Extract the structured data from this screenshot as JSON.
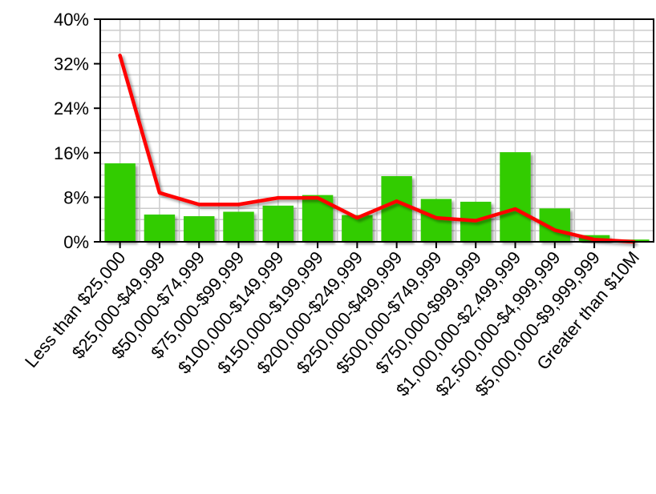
{
  "chart_data": {
    "type": "bar",
    "categories": [
      "Less than $25,000",
      "$25,000-$49,999",
      "$50,000-$74,999",
      "$75,000-$99,999",
      "$100,000-$149,999",
      "$150,000-$199,999",
      "$200,000-$249,999",
      "$250,000-$499,999",
      "$500,000-$749,999",
      "$750,000-$999,999",
      "$1,000,000-$2,499,999",
      "$2,500,000-$4,999,999",
      "$5,000,000-$9,999,999",
      "Greater than $10M"
    ],
    "series": [
      {
        "type": "bar",
        "color": "#33cc00",
        "values": [
          14.1,
          4.9,
          4.6,
          5.4,
          6.5,
          8.4,
          4.8,
          11.8,
          7.7,
          7.2,
          16.1,
          6.0,
          1.2,
          0.4
        ]
      },
      {
        "type": "line",
        "color": "#ff0000",
        "values": [
          33.5,
          8.8,
          6.7,
          6.7,
          7.9,
          7.9,
          4.3,
          7.3,
          4.3,
          3.8,
          5.9,
          2.1,
          0.4,
          0.0
        ]
      }
    ],
    "yticks": [
      "0%",
      "8%",
      "16%",
      "24%",
      "32%",
      "40%"
    ],
    "ylim": [
      0,
      40
    ],
    "grid": true,
    "title": "",
    "xlabel": "",
    "ylabel": ""
  }
}
